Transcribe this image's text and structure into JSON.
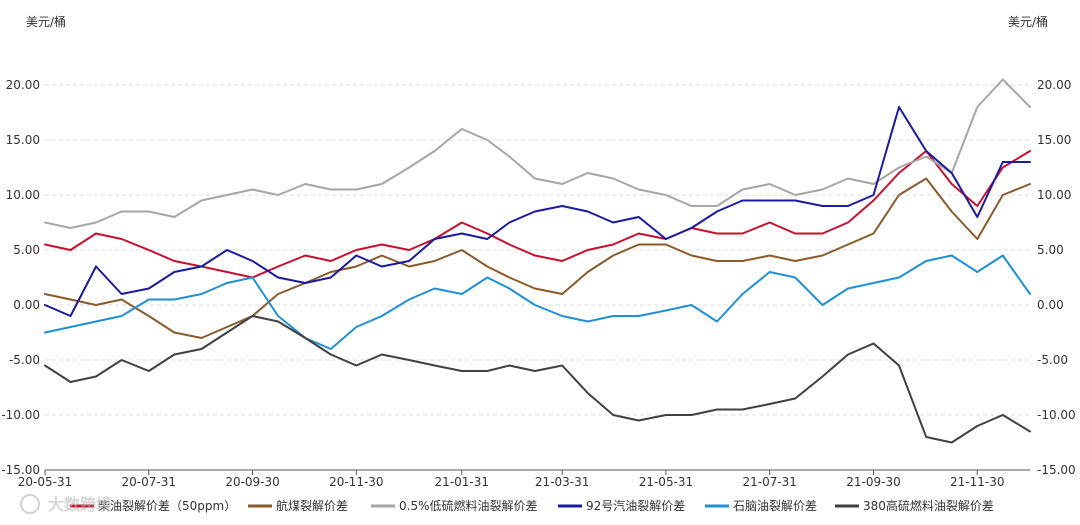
{
  "watermark": "大数跨境",
  "chart_data": {
    "type": "line",
    "unit_left": "美元/桶",
    "unit_right": "美元/桶",
    "ylim": [
      -15,
      25
    ],
    "yticks": [
      -15,
      -10,
      -5,
      0,
      5,
      10,
      15,
      20
    ],
    "ytick_labels": [
      "-15.00",
      "-10.00",
      "-5.00",
      "0.00",
      "5.00",
      "10.00",
      "15.00",
      "20.00"
    ],
    "x_start": "2020-05-31",
    "x_end": "2021-12-31",
    "xticks": [
      "2020-05-31",
      "2020-07-31",
      "2020-09-30",
      "2020-11-30",
      "2021-01-31",
      "2021-03-31",
      "2021-05-31",
      "2021-07-31",
      "2021-09-30",
      "2021-11-30"
    ],
    "xtick_labels": [
      "20-05-31",
      "20-07-31",
      "20-09-30",
      "20-11-30",
      "21-01-31",
      "21-03-31",
      "21-05-31",
      "21-07-31",
      "21-09-30",
      "21-11-30"
    ],
    "grid": true,
    "legend_position": "bottom",
    "series": [
      {
        "name": "柴油裂解价差（50ppm）",
        "color": "#c8102e",
        "x": [
          "2020-05-31",
          "2020-06-15",
          "2020-06-30",
          "2020-07-15",
          "2020-07-31",
          "2020-08-15",
          "2020-08-31",
          "2020-09-15",
          "2020-09-30",
          "2020-10-15",
          "2020-10-31",
          "2020-11-15",
          "2020-11-30",
          "2020-12-15",
          "2020-12-31",
          "2021-01-15",
          "2021-01-31",
          "2021-02-15",
          "2021-02-28",
          "2021-03-15",
          "2021-03-31",
          "2021-04-15",
          "2021-04-30",
          "2021-05-15",
          "2021-05-31",
          "2021-06-15",
          "2021-06-30",
          "2021-07-15",
          "2021-07-31",
          "2021-08-15",
          "2021-08-31",
          "2021-09-15",
          "2021-09-30",
          "2021-10-15",
          "2021-10-31",
          "2021-11-15",
          "2021-11-30",
          "2021-12-15",
          "2021-12-31"
        ],
        "values": [
          5.5,
          5.0,
          6.5,
          6.0,
          5.0,
          4.0,
          3.5,
          3.0,
          2.5,
          3.5,
          4.5,
          4.0,
          5.0,
          5.5,
          5.0,
          6.0,
          7.5,
          6.5,
          5.5,
          4.5,
          4.0,
          5.0,
          5.5,
          6.5,
          6.0,
          7.0,
          6.5,
          6.5,
          7.5,
          6.5,
          6.5,
          7.5,
          9.5,
          12.0,
          14.0,
          11.0,
          9.0,
          12.5,
          14.0
        ]
      },
      {
        "name": "航煤裂解价差",
        "color": "#8b5a2b",
        "x": [
          "2020-05-31",
          "2020-06-15",
          "2020-06-30",
          "2020-07-15",
          "2020-07-31",
          "2020-08-15",
          "2020-08-31",
          "2020-09-15",
          "2020-09-30",
          "2020-10-15",
          "2020-10-31",
          "2020-11-15",
          "2020-11-30",
          "2020-12-15",
          "2020-12-31",
          "2021-01-15",
          "2021-01-31",
          "2021-02-15",
          "2021-02-28",
          "2021-03-15",
          "2021-03-31",
          "2021-04-15",
          "2021-04-30",
          "2021-05-15",
          "2021-05-31",
          "2021-06-15",
          "2021-06-30",
          "2021-07-15",
          "2021-07-31",
          "2021-08-15",
          "2021-08-31",
          "2021-09-15",
          "2021-09-30",
          "2021-10-15",
          "2021-10-31",
          "2021-11-15",
          "2021-11-30",
          "2021-12-15",
          "2021-12-31"
        ],
        "values": [
          1.0,
          0.5,
          0.0,
          0.5,
          -1.0,
          -2.5,
          -3.0,
          -2.0,
          -1.0,
          1.0,
          2.0,
          3.0,
          3.5,
          4.5,
          3.5,
          4.0,
          5.0,
          3.5,
          2.5,
          1.5,
          1.0,
          3.0,
          4.5,
          5.5,
          5.5,
          4.5,
          4.0,
          4.0,
          4.5,
          4.0,
          4.5,
          5.5,
          6.5,
          10.0,
          11.5,
          8.5,
          6.0,
          10.0,
          11.0
        ]
      },
      {
        "name": "0.5%低硫燃料油裂解价差",
        "color": "#a6a6a6",
        "x": [
          "2020-05-31",
          "2020-06-15",
          "2020-06-30",
          "2020-07-15",
          "2020-07-31",
          "2020-08-15",
          "2020-08-31",
          "2020-09-15",
          "2020-09-30",
          "2020-10-15",
          "2020-10-31",
          "2020-11-15",
          "2020-11-30",
          "2020-12-15",
          "2020-12-31",
          "2021-01-15",
          "2021-01-31",
          "2021-02-15",
          "2021-02-28",
          "2021-03-15",
          "2021-03-31",
          "2021-04-15",
          "2021-04-30",
          "2021-05-15",
          "2021-05-31",
          "2021-06-15",
          "2021-06-30",
          "2021-07-15",
          "2021-07-31",
          "2021-08-15",
          "2021-08-31",
          "2021-09-15",
          "2021-09-30",
          "2021-10-15",
          "2021-10-31",
          "2021-11-15",
          "2021-11-30",
          "2021-12-15",
          "2021-12-31"
        ],
        "values": [
          7.5,
          7.0,
          7.5,
          8.5,
          8.5,
          8.0,
          9.5,
          10.0,
          10.5,
          10.0,
          11.0,
          10.5,
          10.5,
          11.0,
          12.5,
          14.0,
          16.0,
          15.0,
          13.5,
          11.5,
          11.0,
          12.0,
          11.5,
          10.5,
          10.0,
          9.0,
          9.0,
          10.5,
          11.0,
          10.0,
          10.5,
          11.5,
          11.0,
          12.5,
          13.5,
          12.0,
          18.0,
          20.5,
          18.0
        ]
      },
      {
        "name": "92号汽油裂解价差",
        "color": "#1a1aa0",
        "x": [
          "2020-05-31",
          "2020-06-15",
          "2020-06-30",
          "2020-07-15",
          "2020-07-31",
          "2020-08-15",
          "2020-08-31",
          "2020-09-15",
          "2020-09-30",
          "2020-10-15",
          "2020-10-31",
          "2020-11-15",
          "2020-11-30",
          "2020-12-15",
          "2020-12-31",
          "2021-01-15",
          "2021-01-31",
          "2021-02-15",
          "2021-02-28",
          "2021-03-15",
          "2021-03-31",
          "2021-04-15",
          "2021-04-30",
          "2021-05-15",
          "2021-05-31",
          "2021-06-15",
          "2021-06-30",
          "2021-07-15",
          "2021-07-31",
          "2021-08-15",
          "2021-08-31",
          "2021-09-15",
          "2021-09-30",
          "2021-10-15",
          "2021-10-31",
          "2021-11-15",
          "2021-11-30",
          "2021-12-15",
          "2021-12-31"
        ],
        "values": [
          0.0,
          -1.0,
          3.5,
          1.0,
          1.5,
          3.0,
          3.5,
          5.0,
          4.0,
          2.5,
          2.0,
          2.5,
          4.5,
          3.5,
          4.0,
          6.0,
          6.5,
          6.0,
          7.5,
          8.5,
          9.0,
          8.5,
          7.5,
          8.0,
          6.0,
          7.0,
          8.5,
          9.5,
          9.5,
          9.5,
          9.0,
          9.0,
          10.0,
          18.0,
          14.0,
          12.0,
          8.0,
          13.0,
          13.0
        ]
      },
      {
        "name": "石脑油裂解价差",
        "color": "#1f8fd6",
        "x": [
          "2020-05-31",
          "2020-06-15",
          "2020-06-30",
          "2020-07-15",
          "2020-07-31",
          "2020-08-15",
          "2020-08-31",
          "2020-09-15",
          "2020-09-30",
          "2020-10-15",
          "2020-10-31",
          "2020-11-15",
          "2020-11-30",
          "2020-12-15",
          "2020-12-31",
          "2021-01-15",
          "2021-01-31",
          "2021-02-15",
          "2021-02-28",
          "2021-03-15",
          "2021-03-31",
          "2021-04-15",
          "2021-04-30",
          "2021-05-15",
          "2021-05-31",
          "2021-06-15",
          "2021-06-30",
          "2021-07-15",
          "2021-07-31",
          "2021-08-15",
          "2021-08-31",
          "2021-09-15",
          "2021-09-30",
          "2021-10-15",
          "2021-10-31",
          "2021-11-15",
          "2021-11-30",
          "2021-12-15",
          "2021-12-31"
        ],
        "values": [
          -2.5,
          -2.0,
          -1.5,
          -1.0,
          0.5,
          0.5,
          1.0,
          2.0,
          2.5,
          -1.0,
          -3.0,
          -4.0,
          -2.0,
          -1.0,
          0.5,
          1.5,
          1.0,
          2.5,
          1.5,
          0.0,
          -1.0,
          -1.5,
          -1.0,
          -1.0,
          -0.5,
          0.0,
          -1.5,
          1.0,
          3.0,
          2.5,
          0.0,
          1.5,
          2.0,
          2.5,
          4.0,
          4.5,
          3.0,
          4.5,
          1.0
        ]
      },
      {
        "name": "380高硫燃料油裂解价差",
        "color": "#404040",
        "x": [
          "2020-05-31",
          "2020-06-15",
          "2020-06-30",
          "2020-07-15",
          "2020-07-31",
          "2020-08-15",
          "2020-08-31",
          "2020-09-15",
          "2020-09-30",
          "2020-10-15",
          "2020-10-31",
          "2020-11-15",
          "2020-11-30",
          "2020-12-15",
          "2020-12-31",
          "2021-01-15",
          "2021-01-31",
          "2021-02-15",
          "2021-02-28",
          "2021-03-15",
          "2021-03-31",
          "2021-04-15",
          "2021-04-30",
          "2021-05-15",
          "2021-05-31",
          "2021-06-15",
          "2021-06-30",
          "2021-07-15",
          "2021-07-31",
          "2021-08-15",
          "2021-08-31",
          "2021-09-15",
          "2021-09-30",
          "2021-10-15",
          "2021-10-31",
          "2021-11-15",
          "2021-11-30",
          "2021-12-15",
          "2021-12-31"
        ],
        "values": [
          -5.5,
          -7.0,
          -6.5,
          -5.0,
          -6.0,
          -4.5,
          -4.0,
          -2.5,
          -1.0,
          -1.5,
          -3.0,
          -4.5,
          -5.5,
          -4.5,
          -5.0,
          -5.5,
          -6.0,
          -6.0,
          -5.5,
          -6.0,
          -5.5,
          -8.0,
          -10.0,
          -10.5,
          -10.0,
          -10.0,
          -9.5,
          -9.5,
          -9.0,
          -8.5,
          -6.5,
          -4.5,
          -3.5,
          -5.5,
          -12.0,
          -12.5,
          -11.0,
          -10.0,
          -11.5
        ]
      }
    ]
  }
}
